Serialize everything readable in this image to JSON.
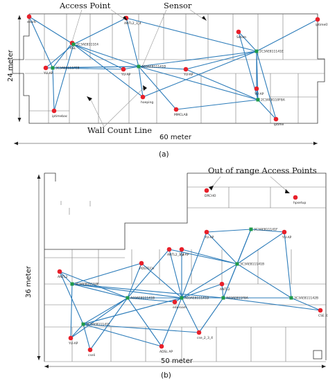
{
  "panel_a": {
    "annotations": {
      "access_point": "Access Point",
      "sensor": "Sensor",
      "wall_count_line": "Wall Count Line"
    },
    "dimensions": {
      "height": "24 meter",
      "width": "60 meter"
    },
    "caption": "(a)",
    "aps": [
      {
        "id": "a1",
        "label": "elevfc"
      },
      {
        "id": "a2",
        "label": "ANTL2_3_4"
      },
      {
        "id": "a3",
        "label": "iptime011"
      },
      {
        "id": "a4",
        "label": "Sstom"
      },
      {
        "id": "a5",
        "label": "RSL"
      },
      {
        "id": "a6",
        "label": "YU-AP"
      },
      {
        "id": "a7",
        "label": "YU-AP"
      },
      {
        "id": "a8",
        "label": "YU-AP"
      },
      {
        "id": "a9",
        "label": "YU-AP"
      },
      {
        "id": "a10",
        "label": "hoeping"
      },
      {
        "id": "a11",
        "label": "MMCLAB"
      },
      {
        "id": "a12",
        "label": "iptimebac"
      },
      {
        "id": "a13",
        "label": "iptime"
      }
    ],
    "sensors": [
      {
        "id": "s1",
        "label": "2C3AE8111E4"
      },
      {
        "id": "s2",
        "label": "3C3AE8111FE8"
      },
      {
        "id": "s3",
        "label": "A03AE811141D"
      },
      {
        "id": "s4",
        "label": "2C3AE811141E"
      },
      {
        "id": "s5",
        "label": "2C3AE8110F8A"
      }
    ]
  },
  "panel_b": {
    "annotations": {
      "out_of_range": "Out of range Access Points"
    },
    "dimensions": {
      "height": "36 meter",
      "width": "50 meter"
    },
    "caption": "(b)",
    "aps": [
      {
        "id": "b1",
        "label": "DRCHO"
      },
      {
        "id": "b2",
        "label": "hpsetup"
      },
      {
        "id": "b3",
        "label": "YU-AP"
      },
      {
        "id": "b4",
        "label": "YU-AP"
      },
      {
        "id": "b5",
        "label": "ANTL2_3_4"
      },
      {
        "id": "b6",
        "label": "POSTECH"
      },
      {
        "id": "b7",
        "label": "ANTL2"
      },
      {
        "id": "b8",
        "label": "ANTL2"
      },
      {
        "id": "b9",
        "label": "eduroam"
      },
      {
        "id": "b10",
        "label": "YU-AP"
      },
      {
        "id": "b11",
        "label": "cseli"
      },
      {
        "id": "b12",
        "label": "ADSL AP"
      },
      {
        "id": "b13",
        "label": "cse_2_3_4"
      },
      {
        "id": "b14",
        "label": "CSE 220 2.4G"
      },
      {
        "id": "b15",
        "label": "YU-AP"
      }
    ],
    "sensors": [
      {
        "id": "t1",
        "label": "3C3AE811141F"
      },
      {
        "id": "t2",
        "label": "3C3AE811141B"
      },
      {
        "id": "t3",
        "label": "3C3AE811110E"
      },
      {
        "id": "t4",
        "label": "A03AE811141B"
      },
      {
        "id": "t5",
        "label": "A03AE811141D"
      },
      {
        "id": "t6",
        "label": "A03AE811F8A"
      },
      {
        "id": "t7",
        "label": "3C3AE811142B"
      },
      {
        "id": "t8",
        "label": "3C3AE811141E"
      }
    ]
  }
}
